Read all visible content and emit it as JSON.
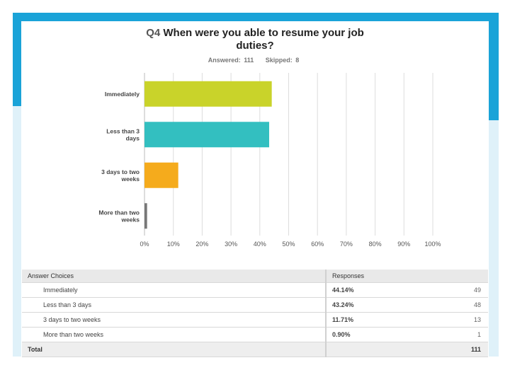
{
  "question": {
    "number": "Q4",
    "text": "When were you able to resume your job duties?",
    "answered_label": "Answered: 111",
    "skipped_label": "Skipped: 8"
  },
  "colors": {
    "accent": "#1aa3d8",
    "bar_colors": [
      "#c9d32a",
      "#33bfc0",
      "#f5ab1c",
      "#777777"
    ],
    "grid": "#dddddd"
  },
  "chart_data": {
    "type": "bar",
    "orientation": "horizontal",
    "categories": [
      "Immediately",
      "Less than 3 days",
      "3 days to two weeks",
      "More than two weeks"
    ],
    "category_label_lines": [
      [
        "Immediately"
      ],
      [
        "Less than 3",
        "days"
      ],
      [
        "3 days to two",
        "weeks"
      ],
      [
        "More than two",
        "weeks"
      ]
    ],
    "values": [
      44.14,
      43.24,
      11.71,
      0.9
    ],
    "xlim": [
      0,
      100
    ],
    "xticks": [
      "0%",
      "10%",
      "20%",
      "30%",
      "40%",
      "50%",
      "60%",
      "70%",
      "80%",
      "90%",
      "100%"
    ],
    "grid": true
  },
  "table": {
    "headers": [
      "Answer Choices",
      "Responses"
    ],
    "rows": [
      {
        "choice": "Immediately",
        "percent": "44.14%",
        "count": "49"
      },
      {
        "choice": "Less than 3 days",
        "percent": "43.24%",
        "count": "48"
      },
      {
        "choice": "3 days to two weeks",
        "percent": "11.71%",
        "count": "13"
      },
      {
        "choice": "More than two weeks",
        "percent": "0.90%",
        "count": "1"
      }
    ],
    "total_label": "Total",
    "total_count": "111"
  }
}
